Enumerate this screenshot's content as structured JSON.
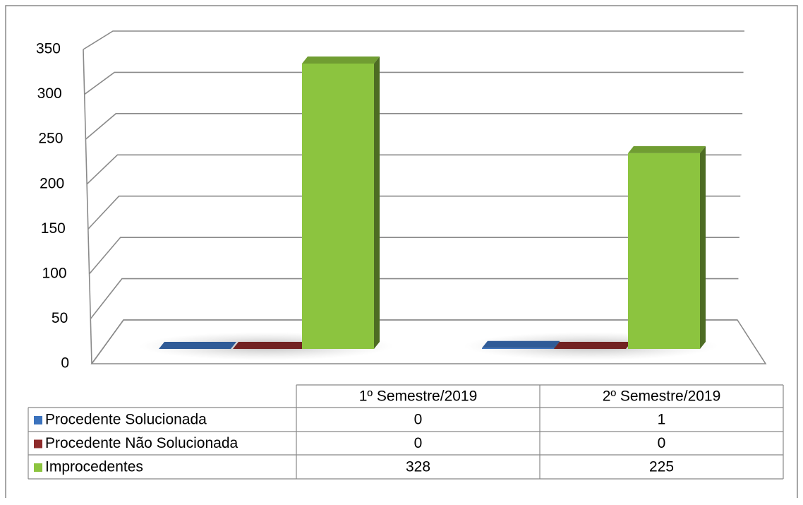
{
  "chart_data": {
    "type": "bar3d",
    "categories": [
      "1º Semestre/2019",
      "2º Semestre/2019"
    ],
    "series": [
      {
        "name": "Procedente Solucionada",
        "color": "#3b72bd",
        "values": [
          0,
          1
        ]
      },
      {
        "name": "Procedente Não Solucionada",
        "color": "#8e2a2a",
        "values": [
          0,
          0
        ]
      },
      {
        "name": "Improcedentes",
        "color": "#8cc43f",
        "values": [
          328,
          225
        ]
      }
    ],
    "ylim": [
      0,
      350
    ],
    "yticks": [
      0,
      50,
      100,
      150,
      200,
      250,
      300,
      350
    ],
    "grid": true
  }
}
